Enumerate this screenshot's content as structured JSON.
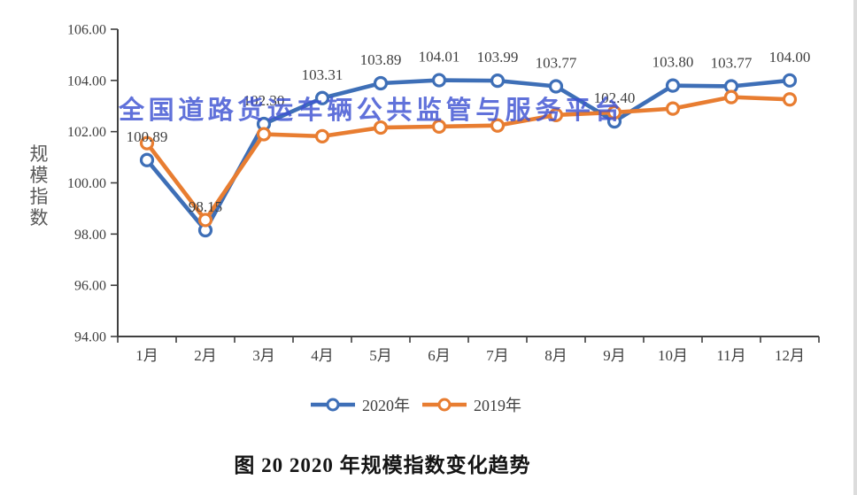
{
  "watermark": {
    "text": "全国道路货运车辆公共监管与服务平台",
    "color": "#3E52D2"
  },
  "chart_data": {
    "type": "line",
    "title": "图 20 2020 年规模指数变化趋势",
    "xlabel": "",
    "ylabel": "规模指数",
    "ylim": [
      94,
      106
    ],
    "ytick_step": 2,
    "ytick_labels": [
      "106.00",
      "104.00",
      "102.00",
      "100.00",
      "98.00",
      "96.00",
      "94.00"
    ],
    "categories": [
      "1月",
      "2月",
      "3月",
      "4月",
      "5月",
      "6月",
      "7月",
      "8月",
      "9月",
      "10月",
      "11月",
      "12月"
    ],
    "grid": false,
    "legend_position": "bottom",
    "series": [
      {
        "name": "2020年",
        "color": "#3E6FB7",
        "marker": "open-circle",
        "values": [
          100.89,
          98.15,
          102.3,
          103.31,
          103.89,
          104.01,
          103.99,
          103.77,
          102.4,
          103.8,
          103.77,
          104.0
        ],
        "point_labels": [
          "100.89",
          "98.15",
          "102.30",
          "103.31",
          "103.89",
          "104.01",
          "103.99",
          "103.77",
          "102.40",
          "103.80",
          "103.77",
          "104.00"
        ]
      },
      {
        "name": "2019年",
        "color": "#E87D31",
        "marker": "open-circle",
        "values": [
          101.55,
          98.55,
          101.9,
          101.82,
          102.16,
          102.2,
          102.24,
          102.65,
          102.75,
          102.9,
          103.35,
          103.26
        ],
        "point_labels": []
      }
    ]
  },
  "legend": {
    "items": [
      {
        "label": "2020年",
        "color": "#3E6FB7"
      },
      {
        "label": "2019年",
        "color": "#E87D31"
      }
    ]
  },
  "caption": {
    "text": "图 20 2020 年规模指数变化趋势"
  }
}
